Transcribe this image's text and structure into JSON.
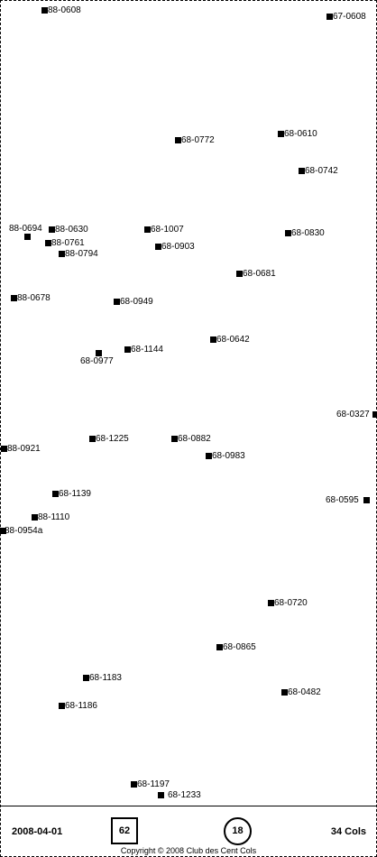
{
  "footer": {
    "date": "2008-04-01",
    "box_value": "62",
    "circle_value": "18",
    "count": "34 Cols",
    "copyright": "Copyright © 2008 Club des Cent Cols"
  },
  "points": [
    {
      "label": "88-0608"
    },
    {
      "label": "67-0608"
    },
    {
      "label": "68-0772"
    },
    {
      "label": "68-0610"
    },
    {
      "label": "68-0742"
    },
    {
      "label": "88-0694"
    },
    {
      "label": "88-0630"
    },
    {
      "label": "88-0761"
    },
    {
      "label": "88-0794"
    },
    {
      "label": "68-1007"
    },
    {
      "label": "68-0903"
    },
    {
      "label": "68-0830"
    },
    {
      "label": "68-0681"
    },
    {
      "label": "88-0678"
    },
    {
      "label": "68-0949"
    },
    {
      "label": "68-0642"
    },
    {
      "label": "68-1144"
    },
    {
      "label": "68-0977"
    },
    {
      "label": "68-0327"
    },
    {
      "label": "68-1225"
    },
    {
      "label": "68-0882"
    },
    {
      "label": "88-0921"
    },
    {
      "label": "68-0983"
    },
    {
      "label": "68-1139"
    },
    {
      "label": "68-0595"
    },
    {
      "label": "88-1110"
    },
    {
      "label": "88-0954a"
    },
    {
      "label": "68-0720"
    },
    {
      "label": "68-0865"
    },
    {
      "label": "68-1183"
    },
    {
      "label": "68-0482"
    },
    {
      "label": "68-1186"
    },
    {
      "label": "68-1197"
    },
    {
      "label": "68-1233"
    }
  ]
}
